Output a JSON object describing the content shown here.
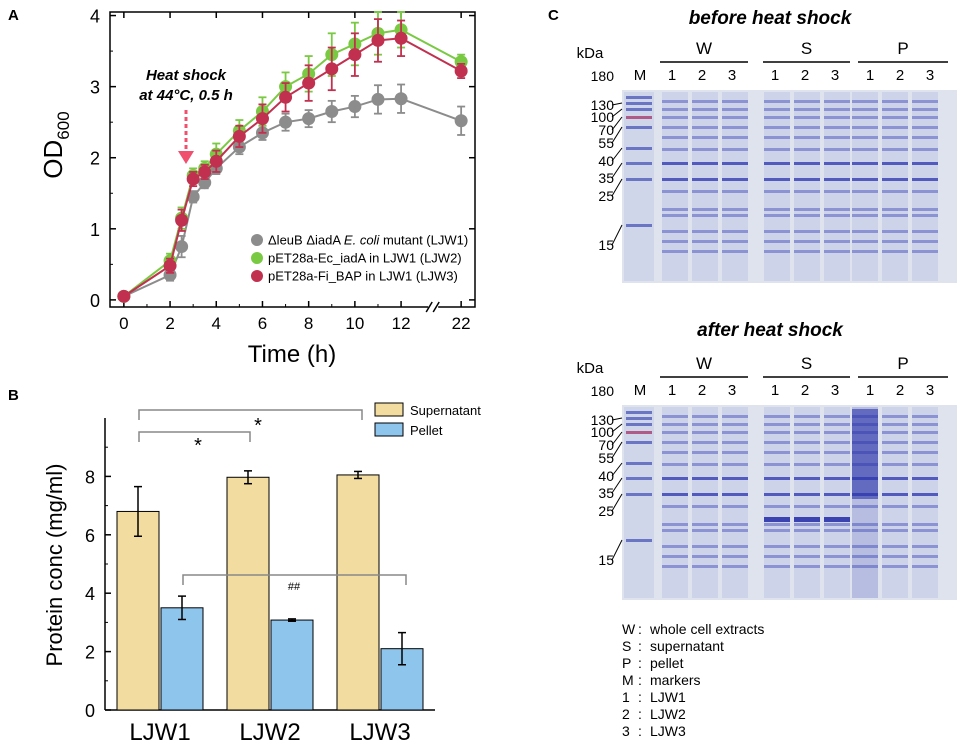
{
  "panels": {
    "a": "A",
    "b": "B",
    "c": "C"
  },
  "panel_a": {
    "ylabel_main": "OD",
    "ylabel_sub": "600",
    "xlabel": "Time (h)",
    "annotation_line1": "Heat shock",
    "annotation_line2": "at 44°C, 0.5 h",
    "legend": [
      {
        "pre": "ΔleuB ΔiadA ",
        "italic": "E. coli",
        "post": " mutant (LJW1)",
        "color": "#8c8c8c"
      },
      {
        "pre": "pET28a-Ec_iadA in LJW1 (LJW2)",
        "italic": "",
        "post": "",
        "color": "#7ac943"
      },
      {
        "pre": "pET28a-Fi_BAP in LJW1 (LJW3)",
        "italic": "",
        "post": "",
        "color": "#c1304f"
      }
    ]
  },
  "panel_b": {
    "ylabel": "Protein conc (mg/ml)",
    "legend": [
      {
        "label": "Supernatant",
        "color": "#f2dca0"
      },
      {
        "label": "Pellet",
        "color": "#8ec5ec"
      }
    ],
    "sig_star_1": "*",
    "sig_star_2": "*",
    "sig_hash": "##"
  },
  "panel_c": {
    "title_top": "before heat shock",
    "title_bottom": "after heat shock",
    "kda": "kDa",
    "lane_m": "M",
    "group_labels": [
      "W",
      "S",
      "P"
    ],
    "lane_numbers": [
      "1",
      "2",
      "3"
    ],
    "marker_labels": [
      "180",
      "130",
      "100",
      "70",
      "55",
      "40",
      "35",
      "25",
      "15"
    ],
    "key": [
      {
        "code": "W",
        "desc": "whole cell extracts"
      },
      {
        "code": "S",
        "desc": "supernatant"
      },
      {
        "code": "P",
        "desc": "pellet"
      },
      {
        "code": "M",
        "desc": "markers"
      },
      {
        "code": "1",
        "desc": "LJW1"
      },
      {
        "code": "2",
        "desc": "LJW2"
      },
      {
        "code": "3",
        "desc": "LJW3"
      }
    ]
  },
  "chart_data": [
    {
      "type": "line",
      "panel": "A",
      "title": "",
      "xlabel": "Time (h)",
      "ylabel": "OD600",
      "x_ticks": [
        "0",
        "2",
        "4",
        "6",
        "8",
        "10",
        "12",
        "22"
      ],
      "y_ticks": [
        "0",
        "1",
        "2",
        "3",
        "4"
      ],
      "xlim": [
        -0.6,
        15.2
      ],
      "ylim": [
        -0.1,
        4.05
      ],
      "axis_break_at": 13,
      "x": [
        0,
        2,
        2.5,
        3,
        3.5,
        4,
        5,
        6,
        7,
        8,
        9,
        10,
        11,
        12,
        22
      ],
      "series": [
        {
          "name": "ΔleuB ΔiadA E. coli mutant (LJW1)",
          "color": "#8c8c8c",
          "values": [
            0.05,
            0.35,
            0.75,
            1.45,
            1.65,
            1.85,
            2.15,
            2.35,
            2.5,
            2.55,
            2.65,
            2.72,
            2.82,
            2.83,
            2.52
          ],
          "errors": [
            0.02,
            0.08,
            0.15,
            0.08,
            0.08,
            0.08,
            0.1,
            0.1,
            0.12,
            0.12,
            0.15,
            0.15,
            0.2,
            0.2,
            0.2
          ]
        },
        {
          "name": "pET28a-Ec_iadA in LJW1 (LJW2)",
          "color": "#7ac943",
          "values": [
            0.05,
            0.55,
            1.15,
            1.75,
            1.85,
            2.05,
            2.38,
            2.65,
            3.0,
            3.18,
            3.45,
            3.6,
            3.75,
            3.8,
            3.35
          ],
          "errors": [
            0.02,
            0.1,
            0.15,
            0.1,
            0.1,
            0.15,
            0.15,
            0.2,
            0.2,
            0.25,
            0.3,
            0.3,
            0.3,
            0.25,
            0.1
          ]
        },
        {
          "name": "pET28a-Fi_BAP in LJW1 (LJW3)",
          "color": "#c1304f",
          "values": [
            0.05,
            0.48,
            1.12,
            1.7,
            1.8,
            1.95,
            2.3,
            2.55,
            2.85,
            3.05,
            3.25,
            3.45,
            3.65,
            3.68,
            3.22
          ],
          "errors": [
            0.02,
            0.1,
            0.15,
            0.1,
            0.1,
            0.15,
            0.15,
            0.2,
            0.2,
            0.25,
            0.3,
            0.3,
            0.3,
            0.25,
            0.1
          ]
        }
      ]
    },
    {
      "type": "bar",
      "panel": "B",
      "title": "",
      "xlabel": "",
      "ylabel": "Protein conc (mg/ml)",
      "categories": [
        "LJW1",
        "LJW2",
        "LJW3"
      ],
      "y_ticks": [
        "0",
        "2",
        "4",
        "6",
        "8"
      ],
      "ylim": [
        0,
        10
      ],
      "series": [
        {
          "name": "Supernatant",
          "color": "#f2dca0",
          "values": [
            6.8,
            7.97,
            8.05
          ],
          "errors": [
            0.85,
            0.22,
            0.12
          ]
        },
        {
          "name": "Pellet",
          "color": "#8ec5ec",
          "values": [
            3.5,
            3.08,
            2.1
          ],
          "errors": [
            0.4,
            0.04,
            0.55
          ]
        }
      ]
    }
  ]
}
